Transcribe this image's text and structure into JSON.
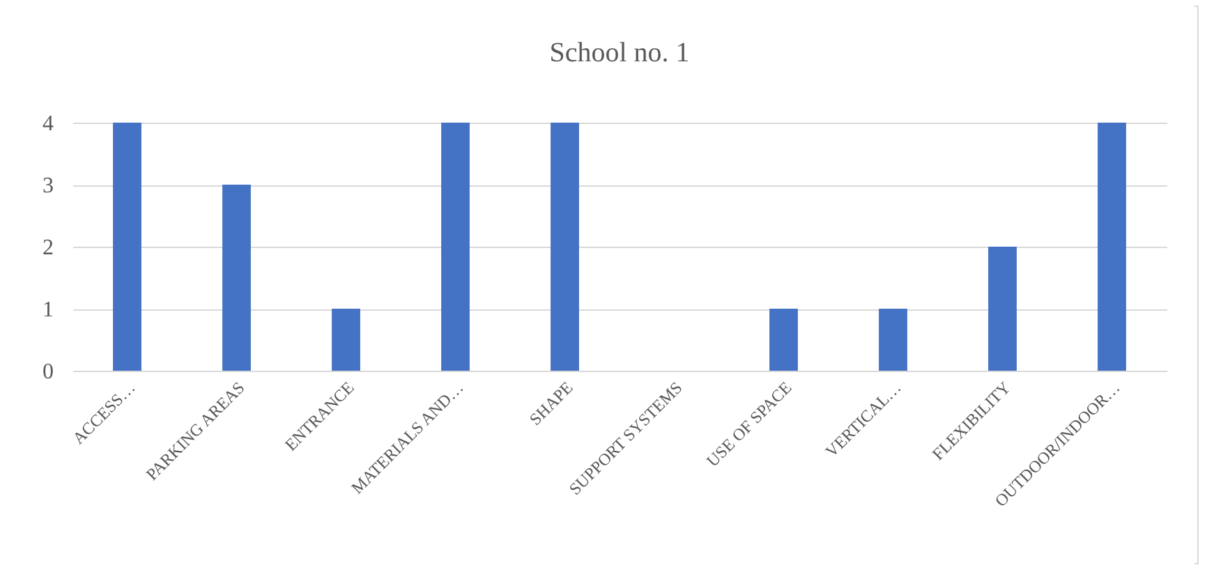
{
  "chart_data": {
    "type": "bar",
    "title": "School no. 1",
    "categories": [
      "ACCESS…",
      "PARKING AREAS",
      "ENTRANCE",
      "MATERIALS AND…",
      "SHAPE",
      "SUPPORT SYSTEMS",
      "USE OF SPACE",
      "VERTICAL…",
      "FLEXIBILITY",
      "OUTDOOR/INDOOR…"
    ],
    "values": [
      4,
      3,
      1,
      4,
      4,
      0,
      1,
      1,
      2,
      4
    ],
    "color": "#4472c4",
    "ylim": [
      0,
      4
    ],
    "yticks": [
      0,
      1,
      2,
      3,
      4
    ],
    "grid": "y"
  }
}
